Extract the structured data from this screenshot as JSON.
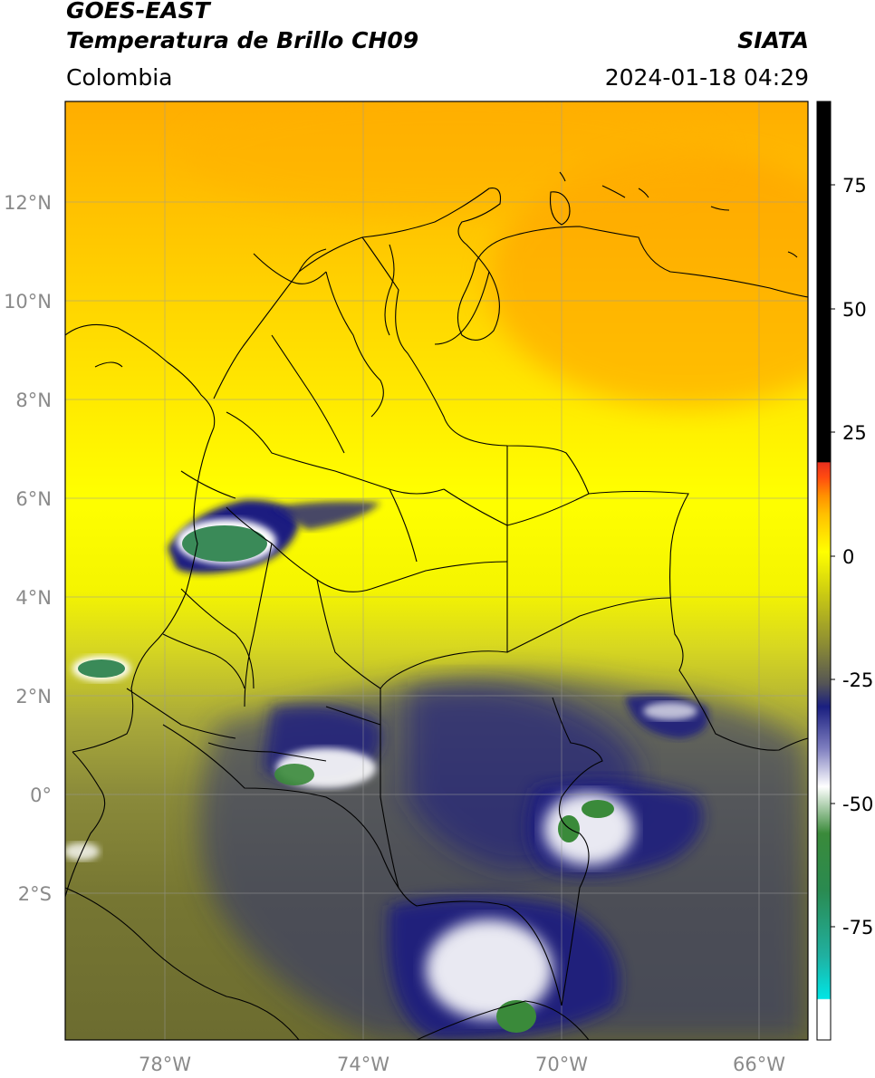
{
  "header": {
    "satellite": "GOES-EAST",
    "product": "Temperatura de Brillo CH09",
    "region": "Colombia",
    "org": "SIATA",
    "timestamp": "2024-01-18 04:29"
  },
  "map": {
    "lon_range": [
      -80,
      -65
    ],
    "lat_range": [
      -5,
      14
    ],
    "lon_ticks": [
      "78°W",
      "74°W",
      "70°W",
      "66°W"
    ],
    "lat_ticks": [
      "12°N",
      "10°N",
      "8°N",
      "6°N",
      "4°N",
      "2°N",
      "0°",
      "2°S"
    ],
    "grid": true
  },
  "colorbar": {
    "range": [
      -100,
      90
    ],
    "ticks": [
      "75",
      "50",
      "25",
      "0",
      "-25",
      "-50",
      "-75"
    ],
    "colors": {
      "black": "#000000",
      "red": "#e8301e",
      "orange": "#ff9d00",
      "yellow": "#ffff00",
      "olive": "#8a8a35",
      "navy": "#1a1f80",
      "white": "#ffffff",
      "green": "#3a8a3a",
      "cyan": "#00e5e5"
    }
  }
}
